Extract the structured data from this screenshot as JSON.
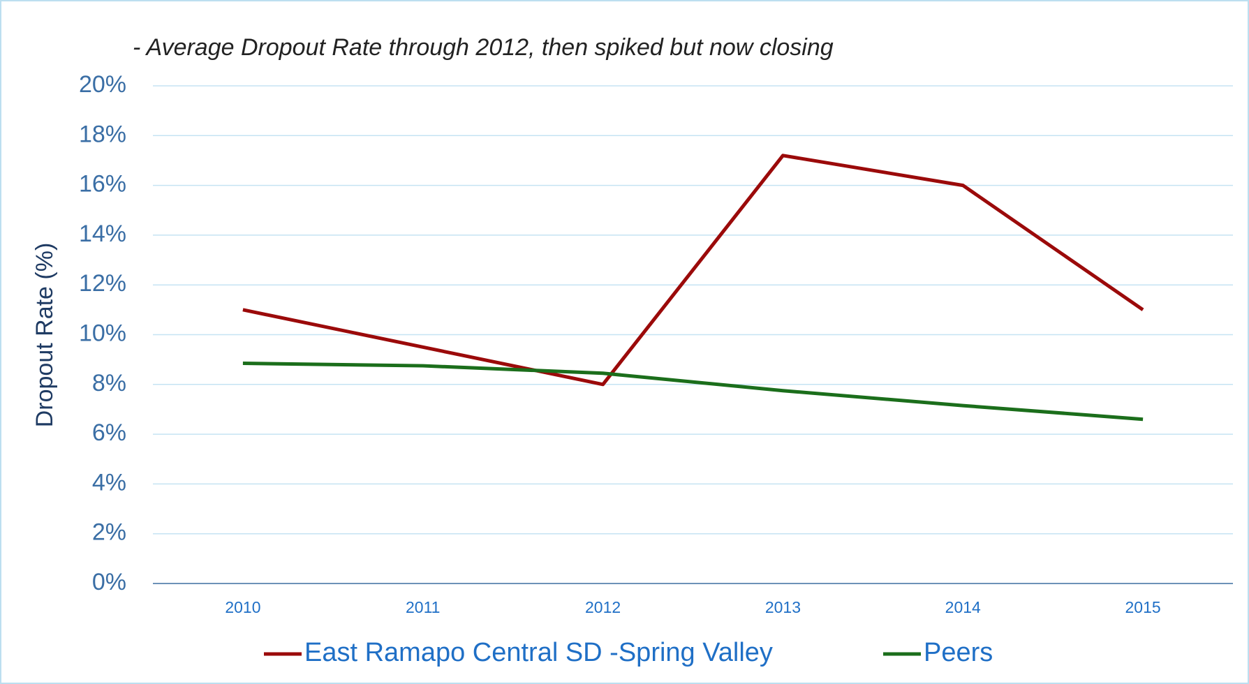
{
  "chart_data": {
    "type": "line",
    "title": "- Average Dropout Rate through 2012, then spiked but now closing",
    "y_label": "Dropout Rate (%)",
    "categories": [
      "2010",
      "2011",
      "2012",
      "2013",
      "2014",
      "2015"
    ],
    "series": [
      {
        "name": "East Ramapo Central SD -Spring Valley",
        "color": "#9b0a0a",
        "values": [
          11,
          9.5,
          8,
          17.2,
          16,
          11
        ]
      },
      {
        "name": "Peers",
        "color": "#1b6e1b",
        "values": [
          8.85,
          8.75,
          8.45,
          7.75,
          7.15,
          6.6
        ]
      }
    ],
    "ylim": [
      0,
      20
    ],
    "yticks": [
      {
        "value": 0,
        "label": "0%"
      },
      {
        "value": 2,
        "label": "2%"
      },
      {
        "value": 4,
        "label": "4%"
      },
      {
        "value": 6,
        "label": "6%"
      },
      {
        "value": 8,
        "label": "8%"
      },
      {
        "value": 10,
        "label": "10%"
      },
      {
        "value": 12,
        "label": "12%"
      },
      {
        "value": 14,
        "label": "14%"
      },
      {
        "value": 16,
        "label": "16%"
      },
      {
        "value": 18,
        "label": "18%"
      },
      {
        "value": 20,
        "label": "20%"
      }
    ],
    "grid": true,
    "legend": "bottom"
  }
}
